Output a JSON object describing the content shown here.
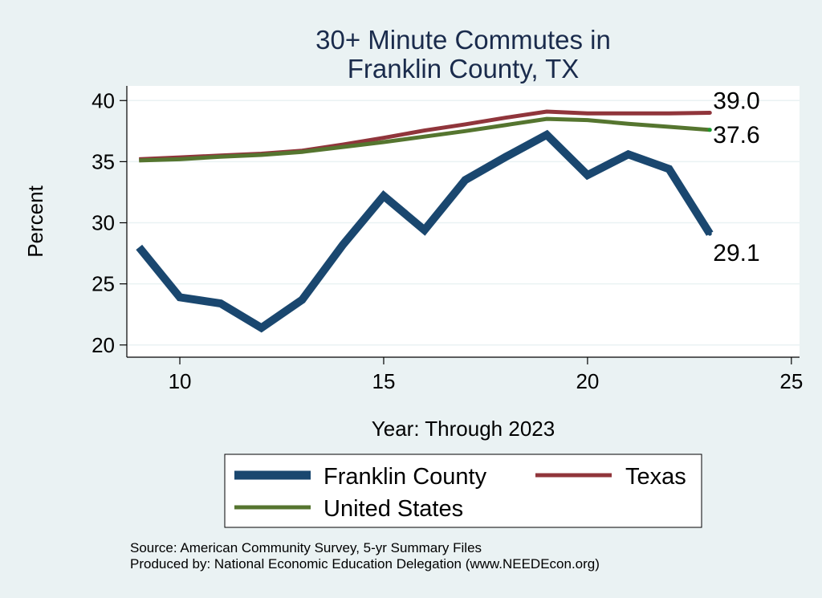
{
  "chart_data": {
    "type": "line",
    "title_lines": [
      "30+ Minute Commutes in",
      "Franklin County, TX"
    ],
    "xlabel": "Year: Through 2023",
    "ylabel": "Percent",
    "xlim": [
      8.7,
      25.2
    ],
    "ylim": [
      19.0,
      41.2
    ],
    "xticks": [
      10,
      15,
      20,
      25
    ],
    "yticks": [
      20,
      25,
      30,
      35,
      40
    ],
    "grid": true,
    "x": [
      9,
      10,
      11,
      12,
      13,
      14,
      15,
      16,
      17,
      18,
      19,
      20,
      21,
      22,
      23
    ],
    "series": [
      {
        "name": "Franklin County",
        "color": "#1a476f",
        "values": [
          28.0,
          23.9,
          23.4,
          21.4,
          23.7,
          28.2,
          32.2,
          29.4,
          33.5,
          35.4,
          37.2,
          33.9,
          35.6,
          34.4,
          29.1
        ],
        "end_label": "29.1"
      },
      {
        "name": "Texas",
        "color": "#90353b",
        "values": [
          35.2,
          35.35,
          35.5,
          35.65,
          35.9,
          36.4,
          36.95,
          37.55,
          38.05,
          38.6,
          39.1,
          38.95,
          38.95,
          38.95,
          39.0
        ],
        "end_label": "39.0"
      },
      {
        "name": "United States",
        "color": "#55752f",
        "values": [
          35.1,
          35.2,
          35.4,
          35.55,
          35.8,
          36.2,
          36.6,
          37.05,
          37.5,
          38.0,
          38.5,
          38.4,
          38.1,
          37.85,
          37.6
        ],
        "end_label": "37.6"
      }
    ],
    "legend_position": "bottom",
    "source_lines": [
      "Source: American Community Survey, 5-yr Summary Files",
      "Produced by: National Economic Education Delegation (www.NEEDEcon.org)"
    ]
  }
}
